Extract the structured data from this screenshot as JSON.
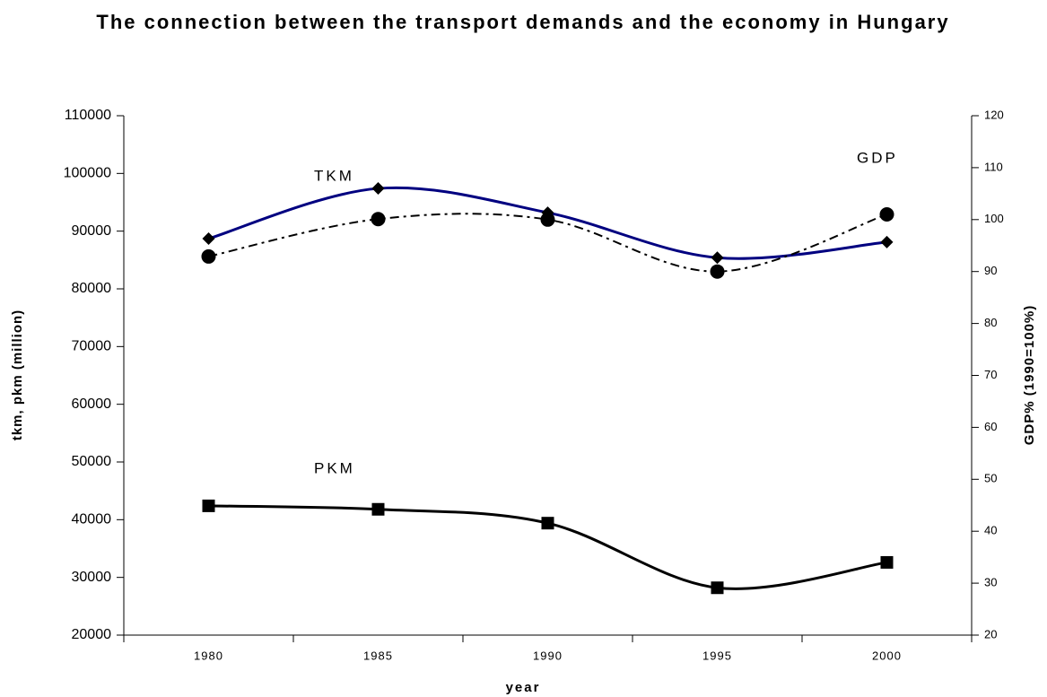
{
  "chart_data": {
    "type": "line",
    "title": "The connection between the transport demands and the economy in Hungary",
    "x_label": "year",
    "y_label": "tkm, pkm (million)",
    "y2_label": "GDP% (1990=100%)",
    "categories": [
      "1980",
      "1985",
      "1990",
      "1995",
      "2000"
    ],
    "ylim": [
      20000,
      110000
    ],
    "yticks": [
      20000,
      30000,
      40000,
      50000,
      60000,
      70000,
      80000,
      90000,
      100000,
      110000
    ],
    "y2lim": [
      20,
      120
    ],
    "y2ticks": [
      20,
      30,
      40,
      50,
      60,
      70,
      80,
      90,
      100,
      110,
      120
    ],
    "grid": false,
    "smooth": true,
    "series": [
      {
        "name": "TKM",
        "color": "#000080",
        "marker": "diamond",
        "dash": "solid",
        "values": [
          88700,
          97400,
          93200,
          85400,
          88100
        ]
      },
      {
        "name": "PKM",
        "color": "#000000",
        "marker": "square",
        "dash": "solid",
        "values": [
          42400,
          41800,
          39400,
          28200,
          32600
        ]
      },
      {
        "name": "GDP",
        "color": "#000000",
        "marker": "circle",
        "dash": "dashdot",
        "axis": "y2",
        "values": [
          92.9,
          100.1,
          100,
          90,
          101
        ]
      }
    ]
  }
}
